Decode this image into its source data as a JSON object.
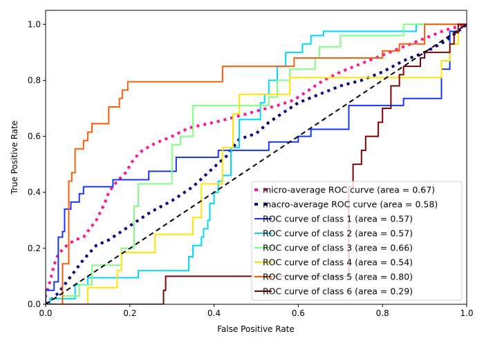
{
  "chart_data": {
    "type": "line",
    "title": "",
    "xlabel": "False Positive Rate",
    "ylabel": "True Positive Rate",
    "xlim": [
      0.0,
      1.0
    ],
    "ylim": [
      0.0,
      1.05
    ],
    "xticks": [
      "0.0",
      "0.2",
      "0.4",
      "0.6",
      "0.8",
      "1.0"
    ],
    "yticks": [
      "0.0",
      "0.2",
      "0.4",
      "0.6",
      "0.8",
      "1.0"
    ],
    "grid": false,
    "legend_position": "lower-right",
    "diagonal": {
      "name": "chance",
      "color": "#000000",
      "style": "dashed",
      "x": [
        0,
        1
      ],
      "y": [
        0,
        1
      ]
    },
    "series": [
      {
        "name": "micro-average ROC curve (area = 0.67)",
        "color": "#ff1493",
        "style": "dotted",
        "x": [
          0,
          0,
          0.01,
          0.02,
          0.03,
          0.05,
          0.07,
          0.09,
          0.1,
          0.12,
          0.14,
          0.15,
          0.17,
          0.19,
          0.21,
          0.23,
          0.26,
          0.3,
          0.34,
          0.4,
          0.44,
          0.5,
          0.55,
          0.59,
          0.62,
          0.66,
          0.7,
          0.75,
          0.8,
          0.85,
          0.9,
          0.95,
          1.0
        ],
        "y": [
          0,
          0.03,
          0.08,
          0.14,
          0.18,
          0.21,
          0.23,
          0.24,
          0.26,
          0.3,
          0.36,
          0.4,
          0.44,
          0.47,
          0.52,
          0.55,
          0.575,
          0.6,
          0.63,
          0.65,
          0.665,
          0.69,
          0.71,
          0.73,
          0.76,
          0.8,
          0.83,
          0.86,
          0.89,
          0.92,
          0.95,
          0.98,
          1.0
        ]
      },
      {
        "name": "macro-average ROC curve (area = 0.58)",
        "color": "#000080",
        "style": "dotted",
        "x": [
          0,
          0.03,
          0.06,
          0.09,
          0.12,
          0.15,
          0.18,
          0.21,
          0.25,
          0.3,
          0.35,
          0.4,
          0.43,
          0.46,
          0.5,
          0.53,
          0.56,
          0.6,
          0.65,
          0.7,
          0.75,
          0.8,
          0.85,
          0.9,
          0.95,
          1.0
        ],
        "y": [
          0,
          0.04,
          0.1,
          0.16,
          0.21,
          0.23,
          0.26,
          0.29,
          0.33,
          0.37,
          0.42,
          0.49,
          0.53,
          0.59,
          0.61,
          0.65,
          0.68,
          0.72,
          0.75,
          0.78,
          0.8,
          0.83,
          0.87,
          0.9,
          0.94,
          1.0
        ]
      },
      {
        "name": "ROC curve of class 1 (area = 0.57)",
        "color": "#1434ff",
        "style": "solid",
        "x": [
          0,
          0,
          0.02,
          0.02,
          0.03,
          0.03,
          0.04,
          0.04,
          0.045,
          0.045,
          0.06,
          0.06,
          0.08,
          0.08,
          0.09,
          0.09,
          0.16,
          0.16,
          0.245,
          0.245,
          0.31,
          0.31,
          0.41,
          0.41,
          0.53,
          0.53,
          0.6,
          0.6,
          0.63,
          0.63,
          0.72,
          0.72,
          0.85,
          0.85,
          0.94,
          0.94,
          0.96,
          0.96,
          0.98,
          0.98,
          1.0
        ],
        "y": [
          0,
          0.05,
          0.05,
          0.08,
          0.08,
          0.24,
          0.24,
          0.26,
          0.26,
          0.34,
          0.34,
          0.365,
          0.365,
          0.395,
          0.395,
          0.42,
          0.42,
          0.445,
          0.445,
          0.475,
          0.475,
          0.525,
          0.525,
          0.55,
          0.55,
          0.58,
          0.58,
          0.6,
          0.6,
          0.625,
          0.625,
          0.71,
          0.71,
          0.735,
          0.735,
          0.84,
          0.84,
          0.975,
          0.975,
          1.0,
          1.0
        ]
      },
      {
        "name": "ROC curve of class 2 (area = 0.57)",
        "color": "#00d7ff",
        "style": "solid",
        "x": [
          0,
          0.01,
          0.01,
          0.07,
          0.07,
          0.1,
          0.1,
          0.22,
          0.22,
          0.34,
          0.34,
          0.35,
          0.35,
          0.37,
          0.37,
          0.375,
          0.375,
          0.385,
          0.385,
          0.39,
          0.39,
          0.4,
          0.4,
          0.41,
          0.41,
          0.42,
          0.42,
          0.44,
          0.44,
          0.46,
          0.46,
          0.51,
          0.51,
          0.52,
          0.52,
          0.53,
          0.53,
          0.55,
          0.55,
          0.57,
          0.57,
          0.61,
          0.61,
          0.63,
          0.63,
          0.66,
          0.66,
          0.88,
          0.88,
          1.0
        ],
        "y": [
          0,
          0,
          0.02,
          0.02,
          0.07,
          0.07,
          0.095,
          0.095,
          0.12,
          0.12,
          0.17,
          0.17,
          0.21,
          0.21,
          0.24,
          0.24,
          0.27,
          0.27,
          0.3,
          0.3,
          0.36,
          0.36,
          0.4,
          0.4,
          0.44,
          0.44,
          0.46,
          0.46,
          0.56,
          0.56,
          0.66,
          0.66,
          0.72,
          0.72,
          0.75,
          0.75,
          0.8,
          0.8,
          0.85,
          0.85,
          0.9,
          0.9,
          0.93,
          0.93,
          0.96,
          0.96,
          0.975,
          0.975,
          1.0,
          1.0
        ]
      },
      {
        "name": "ROC curve of class 3 (area = 0.66)",
        "color": "#7fff7f",
        "style": "solid",
        "x": [
          0,
          0.04,
          0.04,
          0.08,
          0.08,
          0.11,
          0.11,
          0.18,
          0.18,
          0.21,
          0.21,
          0.22,
          0.22,
          0.3,
          0.3,
          0.32,
          0.32,
          0.35,
          0.35,
          0.53,
          0.53,
          0.55,
          0.55,
          0.58,
          0.58,
          0.64,
          0.64,
          0.65,
          0.65,
          0.7,
          0.7,
          0.85,
          0.85,
          0.88,
          0.88,
          1.0
        ],
        "y": [
          0,
          0,
          0.03,
          0.03,
          0.07,
          0.07,
          0.14,
          0.14,
          0.2,
          0.2,
          0.35,
          0.35,
          0.43,
          0.43,
          0.57,
          0.57,
          0.6,
          0.6,
          0.71,
          0.71,
          0.74,
          0.74,
          0.8,
          0.8,
          0.84,
          0.84,
          0.88,
          0.88,
          0.92,
          0.92,
          0.96,
          0.96,
          1.0,
          1.0,
          1.0,
          1.0
        ]
      },
      {
        "name": "ROC curve of class 4 (area = 0.54)",
        "color": "#ffe400",
        "style": "solid",
        "x": [
          0,
          0.1,
          0.1,
          0.17,
          0.17,
          0.18,
          0.18,
          0.26,
          0.26,
          0.35,
          0.35,
          0.37,
          0.37,
          0.42,
          0.42,
          0.445,
          0.445,
          0.46,
          0.46,
          0.58,
          0.58,
          0.94,
          0.94,
          0.96,
          0.96,
          0.98,
          0.98,
          1.0
        ],
        "y": [
          0,
          0,
          0.06,
          0.06,
          0.12,
          0.12,
          0.185,
          0.185,
          0.25,
          0.25,
          0.31,
          0.31,
          0.43,
          0.43,
          0.56,
          0.56,
          0.68,
          0.68,
          0.75,
          0.75,
          0.81,
          0.81,
          0.87,
          0.87,
          0.93,
          0.93,
          1.0,
          1.0
        ]
      },
      {
        "name": "ROC curve of class 5 (area = 0.80)",
        "color": "#ff5a0a",
        "style": "solid",
        "x": [
          0,
          0.04,
          0.04,
          0.055,
          0.055,
          0.062,
          0.062,
          0.07,
          0.07,
          0.09,
          0.09,
          0.1,
          0.1,
          0.11,
          0.11,
          0.15,
          0.15,
          0.175,
          0.175,
          0.182,
          0.182,
          0.195,
          0.195,
          0.42,
          0.42,
          0.59,
          0.59,
          0.8,
          0.8,
          0.84,
          0.84,
          0.9,
          0.9,
          1.0
        ],
        "y": [
          0,
          0,
          0.145,
          0.145,
          0.44,
          0.44,
          0.47,
          0.47,
          0.555,
          0.555,
          0.585,
          0.585,
          0.615,
          0.615,
          0.645,
          0.645,
          0.705,
          0.705,
          0.735,
          0.735,
          0.765,
          0.765,
          0.795,
          0.795,
          0.85,
          0.85,
          0.88,
          0.88,
          0.905,
          0.905,
          0.93,
          0.93,
          1.0,
          1.0
        ]
      },
      {
        "name": "ROC curve of class 6 (area = 0.29)",
        "color": "#800000",
        "style": "solid",
        "x": [
          0,
          0.28,
          0.28,
          0.285,
          0.285,
          0.72,
          0.72,
          0.73,
          0.73,
          0.75,
          0.75,
          0.76,
          0.76,
          0.79,
          0.79,
          0.8,
          0.8,
          0.82,
          0.82,
          0.84,
          0.84,
          0.85,
          0.85,
          0.89,
          0.89,
          0.9,
          0.9,
          0.96,
          0.96,
          0.97,
          0.97,
          0.98,
          0.98,
          1.0
        ],
        "y": [
          0,
          0,
          0.05,
          0.05,
          0.1,
          0.1,
          0.42,
          0.42,
          0.5,
          0.5,
          0.55,
          0.55,
          0.6,
          0.6,
          0.65,
          0.65,
          0.7,
          0.7,
          0.78,
          0.78,
          0.82,
          0.82,
          0.85,
          0.85,
          0.88,
          0.88,
          0.9,
          0.9,
          0.93,
          0.93,
          0.97,
          0.97,
          1.0,
          1.0
        ]
      }
    ]
  }
}
